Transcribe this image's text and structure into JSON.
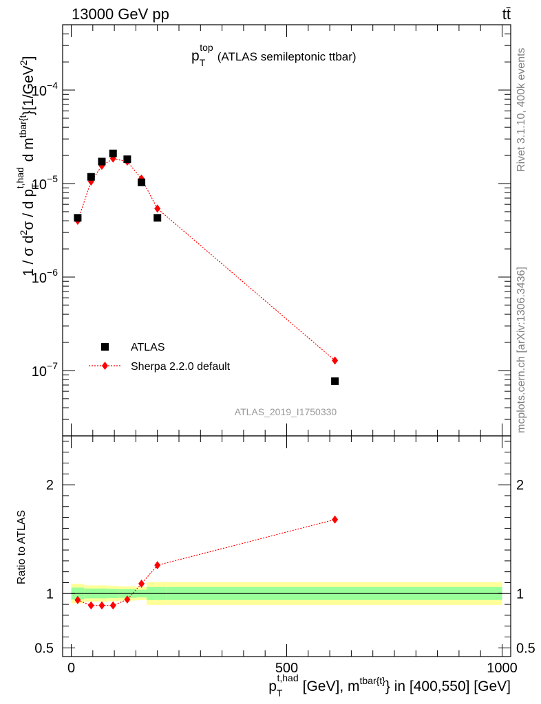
{
  "header": {
    "left_label": "13000 GeV pp",
    "right_label": "tt̄"
  },
  "side_labels": {
    "rivet": "Rivet 3.1.10,  400k events",
    "mcplots": "mcplots.cern.ch [arXiv:1306.3436]"
  },
  "chart_data": [
    {
      "type": "scatter",
      "panel": "main",
      "title_main": "p",
      "title_sub": "T",
      "title_sup": "top",
      "title_rest": "(ATLAS semileptonic ttbar)",
      "ylabel": "1 / σ d²σ / d p_T^{t,had} d m^{tbar{t}} [1/GeV²]",
      "yscale": "log",
      "ylim": [
        2e-08,
        0.0005
      ],
      "xlim": [
        -20,
        1020
      ],
      "yticks": [
        {
          "value": 1e-07,
          "mant": "10",
          "exp": "−7"
        },
        {
          "value": 1e-06,
          "mant": "10",
          "exp": "−6"
        },
        {
          "value": 1e-05,
          "mant": "10",
          "exp": "−5"
        },
        {
          "value": 0.0001,
          "mant": "10",
          "exp": "−4"
        }
      ],
      "watermark": "ATLAS_2019_I1750330",
      "legend_position": "bottom-left",
      "series": [
        {
          "name": "ATLAS",
          "color": "#000000",
          "marker": "square",
          "x": [
            15,
            46,
            71,
            97,
            130,
            163,
            200,
            612
          ],
          "y": [
            4.3e-06,
            1.18e-05,
            1.72e-05,
            2.1e-05,
            1.82e-05,
            1.03e-05,
            4.3e-06,
            7.7e-08
          ]
        },
        {
          "name": "Sherpa 2.2.0 default",
          "color": "#ff0000",
          "marker": "diamond",
          "line": "dotted",
          "x": [
            15,
            46,
            71,
            97,
            130,
            163,
            200,
            612
          ],
          "y": [
            4e-06,
            1.05e-05,
            1.55e-05,
            1.85e-05,
            1.72e-05,
            1.13e-05,
            5.4e-06,
            1.28e-07
          ]
        }
      ]
    },
    {
      "type": "scatter",
      "panel": "ratio",
      "ylabel": "Ratio to ATLAS",
      "ylim": [
        0.42,
        2.45
      ],
      "xlim": [
        -20,
        1020
      ],
      "yticks": [
        0.5,
        1,
        2
      ],
      "ytick_labels": [
        "0.5",
        "1",
        "2"
      ],
      "xticks": [
        0,
        500,
        1000
      ],
      "xtick_labels": [
        "0",
        "500",
        "1000"
      ],
      "xlabel_main": "p",
      "xlabel_sub": "T",
      "xlabel_sup": "t,had",
      "xlabel_mid": "[GeV], m",
      "xlabel_sup2": "tbar{t}",
      "xlabel_end": "} in [400,550] [GeV]",
      "bands": {
        "bin_edges": [
          0,
          30,
          60,
          84,
          110,
          150,
          175,
          220,
          1000
        ],
        "stat_lo": [
          0.945,
          0.955,
          0.955,
          0.958,
          0.96,
          0.965,
          0.94,
          0.94
        ],
        "stat_hi": [
          1.055,
          1.045,
          1.045,
          1.042,
          1.04,
          1.035,
          1.06,
          1.06
        ],
        "tot_lo": [
          0.91,
          0.925,
          0.925,
          0.93,
          0.935,
          0.94,
          0.895,
          0.895
        ],
        "tot_hi": [
          1.09,
          1.075,
          1.075,
          1.07,
          1.065,
          1.06,
          1.105,
          1.105
        ],
        "stat_color": "#99ff99",
        "tot_color": "#ffff99"
      },
      "series": [
        {
          "name": "Sherpa 2.2.0 default",
          "color": "#ff0000",
          "marker": "diamond",
          "line": "dotted",
          "x": [
            15,
            46,
            71,
            97,
            130,
            163,
            200,
            612
          ],
          "y": [
            0.94,
            0.89,
            0.89,
            0.89,
            0.945,
            1.09,
            1.26,
            1.68
          ]
        }
      ]
    }
  ]
}
